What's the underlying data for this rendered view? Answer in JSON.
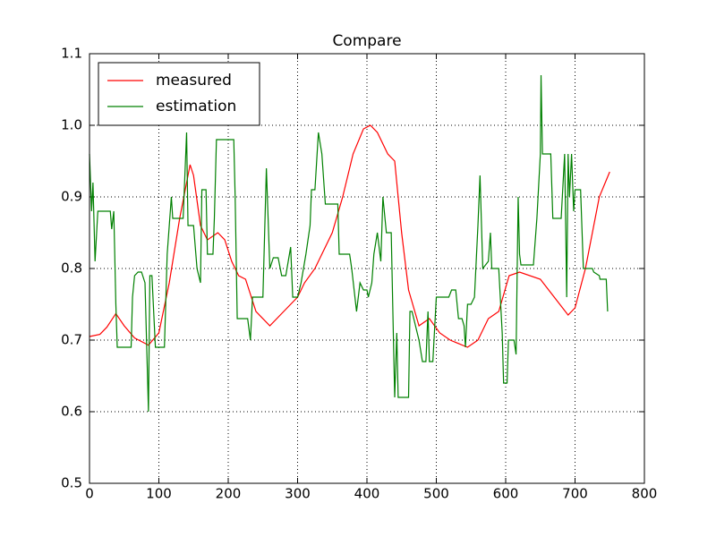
{
  "chart_data": {
    "type": "line",
    "title": "Compare",
    "xlim": [
      0,
      800
    ],
    "xticks": [
      0,
      100,
      200,
      300,
      400,
      500,
      600,
      700,
      800
    ],
    "ylim": [
      0.5,
      1.1
    ],
    "yticks": [
      0.5,
      0.6,
      0.7,
      0.8,
      0.9,
      {
        "value": 1,
        "label": "1.0"
      },
      1.1
    ],
    "grid": true,
    "legend": "upper left",
    "series": [
      {
        "name": "measured",
        "color": "#ff0000",
        "x": [
          0,
          15,
          25,
          38,
          50,
          65,
          85,
          100,
          115,
          130,
          145,
          150,
          160,
          170,
          185,
          195,
          205,
          215,
          225,
          240,
          260,
          275,
          290,
          300,
          310,
          325,
          340,
          350,
          365,
          380,
          395,
          405,
          415,
          430,
          440,
          450,
          460,
          475,
          490,
          505,
          520,
          545,
          560,
          575,
          590,
          605,
          620,
          650,
          670,
          690,
          700,
          715,
          735,
          750
        ],
        "values": [
          0.705,
          0.708,
          0.718,
          0.737,
          0.72,
          0.703,
          0.693,
          0.71,
          0.78,
          0.87,
          0.945,
          0.93,
          0.86,
          0.84,
          0.85,
          0.84,
          0.81,
          0.79,
          0.785,
          0.74,
          0.72,
          0.735,
          0.75,
          0.76,
          0.78,
          0.8,
          0.83,
          0.85,
          0.9,
          0.96,
          0.995,
          1.0,
          0.99,
          0.96,
          0.95,
          0.85,
          0.77,
          0.72,
          0.73,
          0.71,
          0.7,
          0.69,
          0.7,
          0.73,
          0.74,
          0.79,
          0.795,
          0.785,
          0.76,
          0.735,
          0.745,
          0.8,
          0.9,
          0.935
        ]
      },
      {
        "name": "estimation",
        "color": "#008000",
        "x": [
          0,
          3,
          5,
          8,
          12,
          30,
          32,
          35,
          38,
          40,
          60,
          62,
          65,
          70,
          75,
          80,
          85,
          87,
          90,
          95,
          108,
          112,
          118,
          120,
          135,
          140,
          142,
          150,
          155,
          160,
          162,
          168,
          170,
          178,
          180,
          183,
          200,
          208,
          210,
          213,
          228,
          232,
          235,
          250,
          255,
          260,
          265,
          272,
          277,
          283,
          290,
          293,
          300,
          305,
          312,
          318,
          320,
          325,
          330,
          335,
          340,
          358,
          360,
          375,
          378,
          385,
          390,
          395,
          400,
          402,
          407,
          410,
          415,
          420,
          423,
          428,
          435,
          438,
          440,
          443,
          445,
          460,
          462,
          465,
          470,
          475,
          480,
          485,
          488,
          490,
          495,
          500,
          518,
          522,
          528,
          532,
          537,
          540,
          542,
          545,
          550,
          555,
          560,
          563,
          567,
          575,
          578,
          580,
          590,
          595,
          597,
          602,
          604,
          612,
          615,
          618,
          620,
          622,
          640,
          645,
          650,
          651,
          653,
          665,
          668,
          680,
          685,
          688,
          690,
          692,
          695,
          698,
          700,
          708,
          712,
          725,
          727,
          735,
          736,
          745,
          747
        ],
        "values": [
          0.96,
          0.88,
          0.92,
          0.81,
          0.88,
          0.88,
          0.855,
          0.88,
          0.75,
          0.69,
          0.69,
          0.76,
          0.79,
          0.795,
          0.795,
          0.78,
          0.6,
          0.79,
          0.79,
          0.69,
          0.69,
          0.82,
          0.9,
          0.87,
          0.87,
          0.99,
          0.86,
          0.86,
          0.8,
          0.78,
          0.91,
          0.91,
          0.82,
          0.82,
          0.87,
          0.98,
          0.98,
          0.98,
          0.9,
          0.73,
          0.73,
          0.7,
          0.76,
          0.76,
          0.94,
          0.8,
          0.815,
          0.815,
          0.79,
          0.79,
          0.83,
          0.76,
          0.76,
          0.78,
          0.82,
          0.86,
          0.91,
          0.91,
          0.99,
          0.96,
          0.89,
          0.89,
          0.82,
          0.82,
          0.8,
          0.74,
          0.78,
          0.77,
          0.77,
          0.76,
          0.78,
          0.82,
          0.85,
          0.81,
          0.9,
          0.85,
          0.85,
          0.71,
          0.62,
          0.71,
          0.62,
          0.62,
          0.74,
          0.74,
          0.72,
          0.7,
          0.67,
          0.67,
          0.74,
          0.67,
          0.67,
          0.76,
          0.76,
          0.77,
          0.77,
          0.73,
          0.73,
          0.72,
          0.69,
          0.75,
          0.75,
          0.76,
          0.86,
          0.93,
          0.8,
          0.81,
          0.85,
          0.8,
          0.8,
          0.71,
          0.64,
          0.64,
          0.7,
          0.7,
          0.68,
          0.9,
          0.82,
          0.805,
          0.805,
          0.87,
          0.96,
          1.07,
          0.96,
          0.96,
          0.87,
          0.87,
          0.96,
          0.76,
          0.96,
          0.9,
          0.96,
          0.88,
          0.91,
          0.91,
          0.8,
          0.8,
          0.795,
          0.79,
          0.785,
          0.785,
          0.74
        ]
      }
    ]
  }
}
